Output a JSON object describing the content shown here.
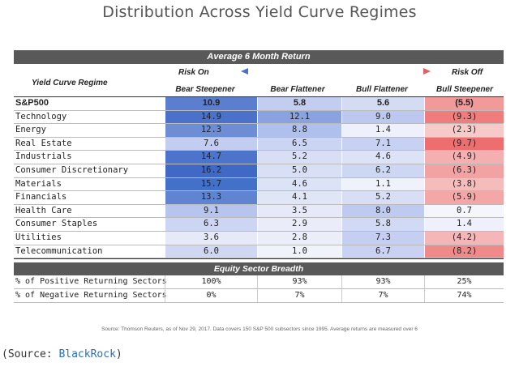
{
  "title": "Distribution Across Yield Curve Regimes",
  "band_title": "Average 6 Month Return",
  "row_header": "Yield Curve Regime",
  "risk_on": "Risk On",
  "risk_off": "Risk Off",
  "columns": [
    "Bear Steepener",
    "Bear Flattener",
    "Bull Flattener",
    "Bull Steepener"
  ],
  "rows": [
    {
      "label": "S&P500",
      "values": [
        "10.9",
        "5.8",
        "5.6",
        "(5.5)"
      ],
      "colors": [
        "#5b7fce",
        "#c3cdf0",
        "#d4dcf4",
        "#f29a9a"
      ]
    },
    {
      "label": "Technology",
      "values": [
        "14.9",
        "12.1",
        "9.0",
        "(9.3)"
      ],
      "colors": [
        "#4a72c9",
        "#8aa3e0",
        "#bcc8ef",
        "#ef7d7d"
      ]
    },
    {
      "label": "Energy",
      "values": [
        "12.3",
        "8.8",
        "1.4",
        "(2.3)"
      ],
      "colors": [
        "#6d8ed5",
        "#b0c0ec",
        "#eef1fb",
        "#f7caca"
      ]
    },
    {
      "label": "Real Estate",
      "values": [
        "7.6",
        "6.5",
        "7.1",
        "(9.7)"
      ],
      "colors": [
        "#c3cdf0",
        "#cbd4f2",
        "#c7d1f1",
        "#ec6e6e"
      ]
    },
    {
      "label": "Industrials",
      "values": [
        "14.7",
        "5.2",
        "4.6",
        "(4.9)"
      ],
      "colors": [
        "#4c74ca",
        "#d8dff5",
        "#dde3f6",
        "#f4b0b0"
      ]
    },
    {
      "label": "Consumer Discretionary",
      "values": [
        "16.2",
        "5.0",
        "6.2",
        "(6.3)"
      ],
      "colors": [
        "#3f69c5",
        "#d9e0f5",
        "#cdd6f3",
        "#f2a2a2"
      ]
    },
    {
      "label": "Materials",
      "values": [
        "15.7",
        "4.6",
        "1.1",
        "(3.8)"
      ],
      "colors": [
        "#4370c8",
        "#dde3f6",
        "#f0f2fb",
        "#f5bcbc"
      ]
    },
    {
      "label": "Financials",
      "values": [
        "13.3",
        "4.1",
        "5.2",
        "(5.9)"
      ],
      "colors": [
        "#5f84d1",
        "#e1e6f7",
        "#d8dff5",
        "#f3a7a7"
      ]
    },
    {
      "label": "Health Care",
      "values": [
        "9.1",
        "3.5",
        "8.0",
        "0.7"
      ],
      "colors": [
        "#b6c4ee",
        "#e6eaf8",
        "#bfcaf0",
        "#f4f6fc"
      ]
    },
    {
      "label": "Consumer Staples",
      "values": [
        "6.3",
        "2.9",
        "5.8",
        "1.4"
      ],
      "colors": [
        "#ccd5f3",
        "#eaedf9",
        "#d1d9f4",
        "#eef1fb"
      ]
    },
    {
      "label": "Utilities",
      "values": [
        "3.6",
        "2.8",
        "7.3",
        "(4.2)"
      ],
      "colors": [
        "#e5e9f8",
        "#ebeef9",
        "#c5cff1",
        "#f4b6b6"
      ]
    },
    {
      "label": "Telecommunication",
      "values": [
        "6.0",
        "1.0",
        "6.7",
        "(8.2)"
      ],
      "colors": [
        "#cfd7f3",
        "#f1f3fb",
        "#c9d2f2",
        "#f08a8a"
      ]
    }
  ],
  "breadth_title": "Equity Sector Breadth",
  "breadth_rows": [
    {
      "label": "% of Positive Returning Sectors",
      "values": [
        "100%",
        "93%",
        "93%",
        "25%"
      ]
    },
    {
      "label": "% of Negative Returning Sectors",
      "values": [
        "0%",
        "7%",
        "7%",
        "74%"
      ]
    }
  ],
  "source_note": "Source: Thomson Reuters, as of Nov 29, 2017. Data covers 150 S&P 500 subsectors since 1995. Average returns are measured over 6",
  "caption_prefix": "(Source: ",
  "caption_link": "BlackRock",
  "caption_suffix": ")",
  "colors": {
    "band": "#595959",
    "arrow_left": "#4a72c9",
    "arrow_right": "#e06060"
  }
}
